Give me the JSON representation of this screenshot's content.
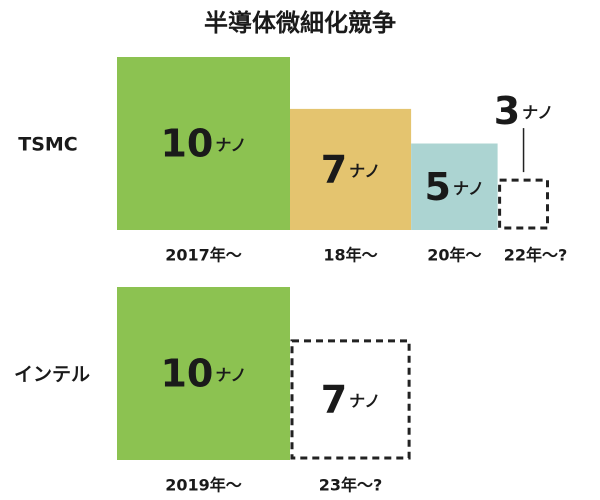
{
  "title": "半導体微細化競争",
  "rows": [
    {
      "label": "TSMC",
      "items": [
        {
          "value": 10,
          "unit": "ナノ",
          "period": "2017年～",
          "planned": false,
          "color": "#8cc251"
        },
        {
          "value": 7,
          "unit": "ナノ",
          "period": "18年～",
          "planned": false,
          "color": "#e4c46f"
        },
        {
          "value": 5,
          "unit": "ナノ",
          "period": "20年～",
          "planned": false,
          "color": "#acd4d2"
        },
        {
          "value": 3,
          "unit": "ナノ",
          "period": "22年～?",
          "planned": true,
          "color": "#ffffff"
        }
      ]
    },
    {
      "label": "インテル",
      "items": [
        {
          "value": 10,
          "unit": "ナノ",
          "period": "2019年～",
          "planned": false,
          "color": "#8cc251"
        },
        {
          "value": 7,
          "unit": "ナノ",
          "period": "23年～?",
          "planned": true,
          "color": "#ffffff"
        }
      ]
    }
  ]
}
